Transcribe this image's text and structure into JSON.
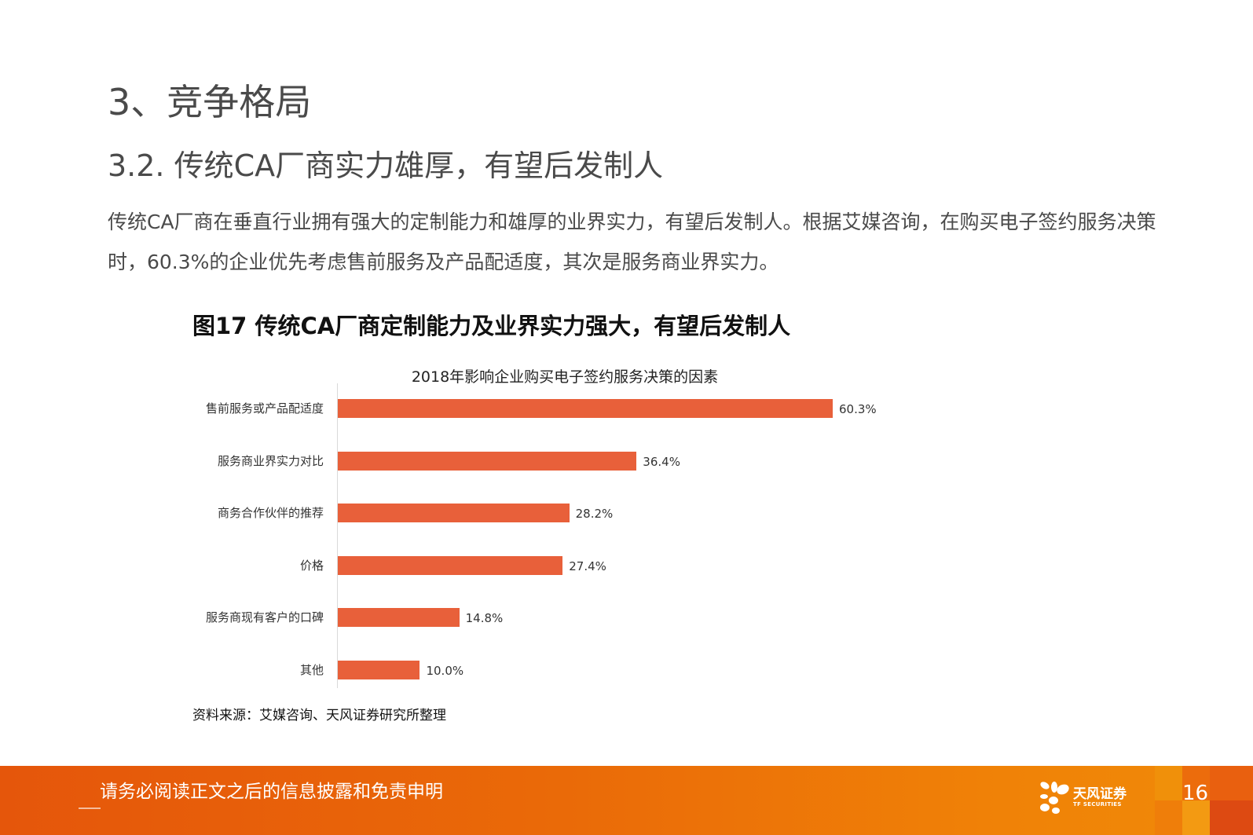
{
  "header": {
    "section_title": "3、竞争格局",
    "sub_title": "3.2. 传统CA厂商实力雄厚，有望后发制人"
  },
  "body": {
    "paragraph": "传统CA厂商在垂直行业拥有强大的定制能力和雄厚的业界实力，有望后发制人。根据艾媒咨询，在购买电子签约服务决策时，60.3%的企业优先考虑售前服务及产品配适度，其次是服务商业界实力。"
  },
  "figure": {
    "title": "图17  传统CA厂商定制能力及业界实力强大，有望后发制人",
    "source": "资料来源：艾媒咨询、天风证券研究所整理"
  },
  "chart_data": {
    "type": "bar",
    "orientation": "horizontal",
    "title": "2018年影响企业购买电子签约服务决策的因素",
    "xlabel": "",
    "ylabel": "",
    "categories": [
      "售前服务或产品配适度",
      "服务商业界实力对比",
      "商务合作伙伴的推荐",
      "价格",
      "服务商现有客户的口碑",
      "其他"
    ],
    "values": [
      60.3,
      36.4,
      28.2,
      27.4,
      14.8,
      10.0
    ],
    "value_labels": [
      "60.3%",
      "36.4%",
      "28.2%",
      "27.4%",
      "14.8%",
      "10.0%"
    ],
    "unit": "%",
    "xlim": [
      0,
      60.3
    ],
    "grid": false,
    "legend": "none",
    "bar_color": "#e8603a"
  },
  "footer": {
    "disclaimer": "请务必阅读正文之后的信息披露和免责申明",
    "logo_cn": "天风证券",
    "logo_en": "TF SECURITIES",
    "page_number": "16",
    "colors": {
      "start": "#e5560b",
      "end": "#f08a08"
    }
  }
}
